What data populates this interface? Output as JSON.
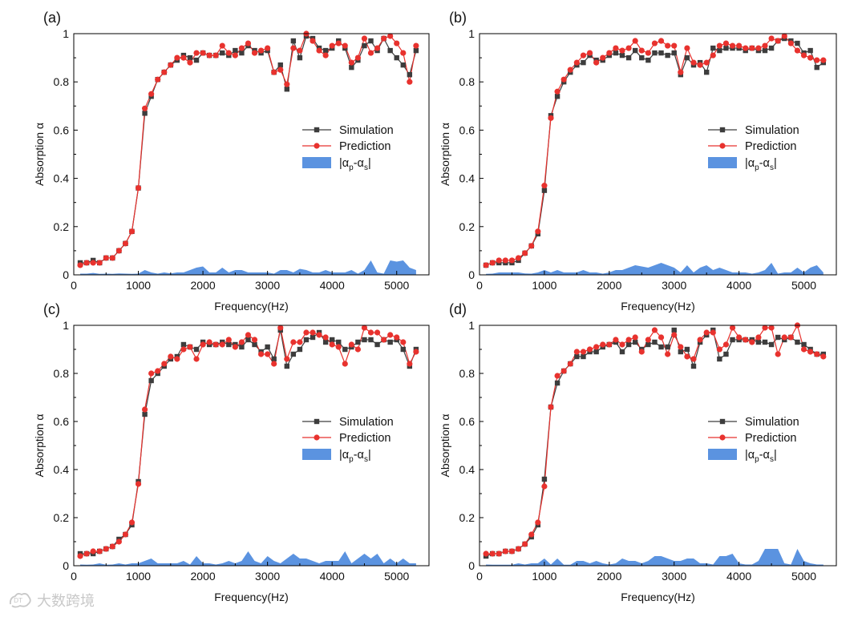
{
  "watermark": {
    "text": "大数跨境"
  },
  "legend": {
    "simulation": "Simulation",
    "prediction": "Prediction",
    "diff_prefix": "|α",
    "diff_sub_p": "p",
    "diff_mid": "-α",
    "diff_sub_s": "s",
    "diff_suffix": "|"
  },
  "colors": {
    "simulation": "#3d3d3d",
    "prediction": "#e8322e",
    "difference": "#5b93e0"
  },
  "chart_data": [
    {
      "type": "line",
      "panel": "(a)",
      "xlabel": "Frequency(Hz)",
      "ylabel": "Absorption α",
      "xlim": [
        0,
        5500
      ],
      "ylim": [
        0,
        1
      ],
      "xticks": [
        0,
        1000,
        2000,
        3000,
        4000,
        5000
      ],
      "yticks": [
        0,
        0.2,
        0.4,
        0.6,
        0.8,
        1
      ],
      "ytick_labels": [
        "0",
        "0.2",
        "0.4",
        "0.6",
        "0.8",
        "1"
      ],
      "x": [
        100,
        200,
        300,
        400,
        500,
        600,
        700,
        800,
        900,
        1000,
        1100,
        1200,
        1300,
        1400,
        1500,
        1600,
        1700,
        1800,
        1900,
        2000,
        2100,
        2200,
        2300,
        2400,
        2500,
        2600,
        2700,
        2800,
        2900,
        3000,
        3100,
        3200,
        3300,
        3400,
        3500,
        3600,
        3700,
        3800,
        3900,
        4000,
        4100,
        4200,
        4300,
        4400,
        4500,
        4600,
        4700,
        4800,
        4900,
        5000,
        5100,
        5200,
        5300
      ],
      "series": [
        {
          "name": "Simulation",
          "values": [
            0.05,
            0.05,
            0.06,
            0.05,
            0.07,
            0.07,
            0.1,
            0.13,
            0.18,
            0.36,
            0.67,
            0.74,
            0.81,
            0.84,
            0.87,
            0.89,
            0.91,
            0.9,
            0.89,
            0.92,
            0.91,
            0.91,
            0.92,
            0.91,
            0.93,
            0.92,
            0.95,
            0.93,
            0.92,
            0.93,
            0.84,
            0.87,
            0.77,
            0.97,
            0.9,
            0.99,
            0.98,
            0.94,
            0.93,
            0.94,
            0.97,
            0.94,
            0.86,
            0.89,
            0.95,
            0.97,
            0.93,
            0.98,
            0.93,
            0.9,
            0.87,
            0.83,
            0.93
          ]
        },
        {
          "name": "Prediction",
          "values": [
            0.04,
            0.05,
            0.05,
            0.05,
            0.07,
            0.07,
            0.1,
            0.13,
            0.18,
            0.36,
            0.69,
            0.75,
            0.81,
            0.84,
            0.87,
            0.9,
            0.9,
            0.88,
            0.92,
            0.92,
            0.91,
            0.91,
            0.95,
            0.92,
            0.91,
            0.94,
            0.96,
            0.92,
            0.93,
            0.94,
            0.84,
            0.85,
            0.79,
            0.94,
            0.93,
            1.0,
            0.97,
            0.93,
            0.91,
            0.95,
            0.96,
            0.95,
            0.88,
            0.9,
            0.98,
            0.92,
            0.94,
            0.98,
            0.99,
            0.96,
            0.92,
            0.8,
            0.95
          ]
        },
        {
          "name": "|αp-αs|",
          "values": [
            0.005,
            0.005,
            0.008,
            0.004,
            0.005,
            0.004,
            0.006,
            0.005,
            0.004,
            0.005,
            0.02,
            0.01,
            0.005,
            0.01,
            0.006,
            0.01,
            0.01,
            0.02,
            0.03,
            0.035,
            0.01,
            0.01,
            0.03,
            0.01,
            0.02,
            0.02,
            0.01,
            0.01,
            0.01,
            0.01,
            0.005,
            0.02,
            0.02,
            0.01,
            0.025,
            0.02,
            0.01,
            0.01,
            0.02,
            0.01,
            0.01,
            0.01,
            0.02,
            0.005,
            0.02,
            0.06,
            0.01,
            0.005,
            0.06,
            0.055,
            0.06,
            0.03,
            0.02
          ]
        }
      ]
    },
    {
      "type": "line",
      "panel": "(b)",
      "xlabel": "Frequency(Hz)",
      "ylabel": "Absorption α",
      "xlim": [
        0,
        5500
      ],
      "ylim": [
        0,
        1
      ],
      "xticks": [
        0,
        1000,
        2000,
        3000,
        4000,
        5000
      ],
      "yticks": [
        0,
        0.2,
        0.4,
        0.6,
        0.8,
        1
      ],
      "ytick_labels": [
        "0",
        "0.2",
        "0.4",
        "0.6",
        "0.8",
        "1"
      ],
      "x": [
        100,
        200,
        300,
        400,
        500,
        600,
        700,
        800,
        900,
        1000,
        1100,
        1200,
        1300,
        1400,
        1500,
        1600,
        1700,
        1800,
        1900,
        2000,
        2100,
        2200,
        2300,
        2400,
        2500,
        2600,
        2700,
        2800,
        2900,
        3000,
        3100,
        3200,
        3300,
        3400,
        3500,
        3600,
        3700,
        3800,
        3900,
        4000,
        4100,
        4200,
        4300,
        4400,
        4500,
        4600,
        4700,
        4800,
        4900,
        5000,
        5100,
        5200,
        5300
      ],
      "series": [
        {
          "name": "Simulation",
          "values": [
            0.04,
            0.05,
            0.05,
            0.05,
            0.05,
            0.06,
            0.09,
            0.12,
            0.17,
            0.35,
            0.66,
            0.74,
            0.8,
            0.84,
            0.87,
            0.88,
            0.91,
            0.89,
            0.89,
            0.91,
            0.92,
            0.91,
            0.9,
            0.93,
            0.9,
            0.89,
            0.92,
            0.92,
            0.91,
            0.92,
            0.83,
            0.9,
            0.87,
            0.88,
            0.84,
            0.94,
            0.93,
            0.94,
            0.94,
            0.94,
            0.93,
            0.94,
            0.93,
            0.93,
            0.94,
            0.97,
            0.98,
            0.97,
            0.96,
            0.92,
            0.93,
            0.86,
            0.88
          ]
        },
        {
          "name": "Prediction",
          "values": [
            0.04,
            0.05,
            0.06,
            0.06,
            0.06,
            0.07,
            0.09,
            0.12,
            0.18,
            0.37,
            0.65,
            0.76,
            0.81,
            0.85,
            0.88,
            0.91,
            0.92,
            0.88,
            0.9,
            0.92,
            0.94,
            0.93,
            0.94,
            0.97,
            0.93,
            0.92,
            0.96,
            0.97,
            0.95,
            0.95,
            0.84,
            0.94,
            0.88,
            0.87,
            0.88,
            0.91,
            0.95,
            0.96,
            0.95,
            0.95,
            0.94,
            0.94,
            0.94,
            0.95,
            0.98,
            0.97,
            0.99,
            0.96,
            0.93,
            0.91,
            0.9,
            0.89,
            0.89
          ]
        },
        {
          "name": "|αp-αs|",
          "values": [
            0.004,
            0.005,
            0.01,
            0.01,
            0.01,
            0.01,
            0.006,
            0.005,
            0.01,
            0.02,
            0.01,
            0.02,
            0.01,
            0.01,
            0.01,
            0.02,
            0.01,
            0.01,
            0.005,
            0.01,
            0.02,
            0.02,
            0.03,
            0.04,
            0.035,
            0.03,
            0.04,
            0.05,
            0.04,
            0.03,
            0.01,
            0.04,
            0.01,
            0.03,
            0.04,
            0.02,
            0.03,
            0.02,
            0.01,
            0.01,
            0.01,
            0.005,
            0.01,
            0.02,
            0.05,
            0.005,
            0.01,
            0.01,
            0.03,
            0.01,
            0.03,
            0.04,
            0.01
          ]
        }
      ]
    },
    {
      "type": "line",
      "panel": "(c)",
      "xlabel": "Frequency(Hz)",
      "ylabel": "Absorption α",
      "xlim": [
        0,
        5500
      ],
      "ylim": [
        0,
        1
      ],
      "xticks": [
        0,
        1000,
        2000,
        3000,
        4000,
        5000
      ],
      "yticks": [
        0,
        0.2,
        0.4,
        0.6,
        0.8,
        1
      ],
      "ytick_labels": [
        "0",
        "0.2",
        "0.4",
        "0.6",
        "0.8",
        "1"
      ],
      "x": [
        100,
        200,
        300,
        400,
        500,
        600,
        700,
        800,
        900,
        1000,
        1100,
        1200,
        1300,
        1400,
        1500,
        1600,
        1700,
        1800,
        1900,
        2000,
        2100,
        2200,
        2300,
        2400,
        2500,
        2600,
        2700,
        2800,
        2900,
        3000,
        3100,
        3200,
        3300,
        3400,
        3500,
        3600,
        3700,
        3800,
        3900,
        4000,
        4100,
        4200,
        4300,
        4400,
        4500,
        4600,
        4700,
        4800,
        4900,
        5000,
        5100,
        5200,
        5300
      ],
      "series": [
        {
          "name": "Simulation",
          "values": [
            0.05,
            0.05,
            0.05,
            0.06,
            0.07,
            0.08,
            0.11,
            0.13,
            0.17,
            0.35,
            0.63,
            0.77,
            0.8,
            0.83,
            0.86,
            0.87,
            0.92,
            0.91,
            0.9,
            0.93,
            0.92,
            0.92,
            0.93,
            0.92,
            0.92,
            0.91,
            0.94,
            0.92,
            0.89,
            0.91,
            0.86,
            0.98,
            0.83,
            0.88,
            0.9,
            0.94,
            0.95,
            0.97,
            0.93,
            0.94,
            0.93,
            0.9,
            0.91,
            0.93,
            0.94,
            0.94,
            0.92,
            0.94,
            0.93,
            0.94,
            0.9,
            0.83,
            0.9
          ]
        },
        {
          "name": "Prediction",
          "values": [
            0.04,
            0.05,
            0.06,
            0.06,
            0.07,
            0.08,
            0.1,
            0.13,
            0.18,
            0.34,
            0.65,
            0.8,
            0.81,
            0.84,
            0.87,
            0.86,
            0.9,
            0.91,
            0.86,
            0.92,
            0.93,
            0.92,
            0.92,
            0.94,
            0.91,
            0.93,
            0.96,
            0.94,
            0.88,
            0.88,
            0.84,
            0.99,
            0.86,
            0.93,
            0.93,
            0.97,
            0.97,
            0.96,
            0.95,
            0.92,
            0.91,
            0.84,
            0.92,
            0.9,
            0.99,
            0.97,
            0.97,
            0.94,
            0.96,
            0.95,
            0.93,
            0.84,
            0.89
          ]
        },
        {
          "name": "|αp-αs|",
          "values": [
            0.005,
            0.004,
            0.005,
            0.01,
            0.004,
            0.005,
            0.01,
            0.005,
            0.01,
            0.01,
            0.02,
            0.03,
            0.01,
            0.01,
            0.01,
            0.01,
            0.02,
            0.005,
            0.04,
            0.01,
            0.01,
            0.005,
            0.01,
            0.02,
            0.01,
            0.02,
            0.06,
            0.02,
            0.01,
            0.04,
            0.02,
            0.01,
            0.03,
            0.05,
            0.03,
            0.03,
            0.02,
            0.01,
            0.02,
            0.02,
            0.02,
            0.06,
            0.01,
            0.03,
            0.05,
            0.03,
            0.05,
            0.01,
            0.03,
            0.01,
            0.03,
            0.01,
            0.01
          ]
        }
      ]
    },
    {
      "type": "line",
      "panel": "(d)",
      "xlabel": "Frequency(Hz)",
      "ylabel": "Absorption α",
      "xlim": [
        0,
        5500
      ],
      "ylim": [
        0,
        1
      ],
      "xticks": [
        0,
        1000,
        2000,
        3000,
        4000,
        5000
      ],
      "yticks": [
        0,
        0.2,
        0.4,
        0.6,
        0.8,
        1
      ],
      "ytick_labels": [
        "0",
        "0.2",
        "0.4",
        "0.6",
        "0.8",
        "1"
      ],
      "x": [
        100,
        200,
        300,
        400,
        500,
        600,
        700,
        800,
        900,
        1000,
        1100,
        1200,
        1300,
        1400,
        1500,
        1600,
        1700,
        1800,
        1900,
        2000,
        2100,
        2200,
        2300,
        2400,
        2500,
        2600,
        2700,
        2800,
        2900,
        3000,
        3100,
        3200,
        3300,
        3400,
        3500,
        3600,
        3700,
        3800,
        3900,
        4000,
        4100,
        4200,
        4300,
        4400,
        4500,
        4600,
        4700,
        4800,
        4900,
        5000,
        5100,
        5200,
        5300
      ],
      "series": [
        {
          "name": "Simulation",
          "values": [
            0.04,
            0.05,
            0.05,
            0.06,
            0.06,
            0.07,
            0.09,
            0.12,
            0.17,
            0.36,
            0.66,
            0.76,
            0.81,
            0.84,
            0.87,
            0.87,
            0.89,
            0.89,
            0.91,
            0.92,
            0.93,
            0.89,
            0.92,
            0.93,
            0.9,
            0.92,
            0.93,
            0.91,
            0.91,
            0.98,
            0.89,
            0.9,
            0.83,
            0.93,
            0.96,
            0.98,
            0.86,
            0.88,
            0.94,
            0.94,
            0.94,
            0.94,
            0.93,
            0.93,
            0.92,
            0.95,
            0.94,
            0.95,
            0.93,
            0.92,
            0.9,
            0.88,
            0.88
          ]
        },
        {
          "name": "Prediction",
          "values": [
            0.05,
            0.05,
            0.05,
            0.06,
            0.06,
            0.07,
            0.09,
            0.13,
            0.18,
            0.33,
            0.66,
            0.79,
            0.81,
            0.84,
            0.89,
            0.89,
            0.9,
            0.91,
            0.92,
            0.92,
            0.94,
            0.92,
            0.94,
            0.95,
            0.89,
            0.94,
            0.98,
            0.95,
            0.88,
            0.96,
            0.91,
            0.87,
            0.86,
            0.94,
            0.97,
            0.97,
            0.9,
            0.92,
            0.99,
            0.95,
            0.94,
            0.93,
            0.95,
            0.99,
            0.99,
            0.88,
            0.95,
            0.95,
            1.0,
            0.9,
            0.89,
            0.88,
            0.87
          ]
        },
        {
          "name": "|αp-αs|",
          "values": [
            0.005,
            0.004,
            0.004,
            0.004,
            0.004,
            0.01,
            0.005,
            0.01,
            0.01,
            0.03,
            0.005,
            0.03,
            0.004,
            0.004,
            0.02,
            0.02,
            0.01,
            0.02,
            0.01,
            0.005,
            0.01,
            0.03,
            0.02,
            0.02,
            0.01,
            0.02,
            0.04,
            0.04,
            0.03,
            0.02,
            0.02,
            0.03,
            0.03,
            0.01,
            0.01,
            0.005,
            0.04,
            0.04,
            0.05,
            0.01,
            0.005,
            0.005,
            0.02,
            0.07,
            0.07,
            0.07,
            0.01,
            0.005,
            0.07,
            0.02,
            0.01,
            0.005,
            0.005
          ]
        }
      ]
    }
  ]
}
